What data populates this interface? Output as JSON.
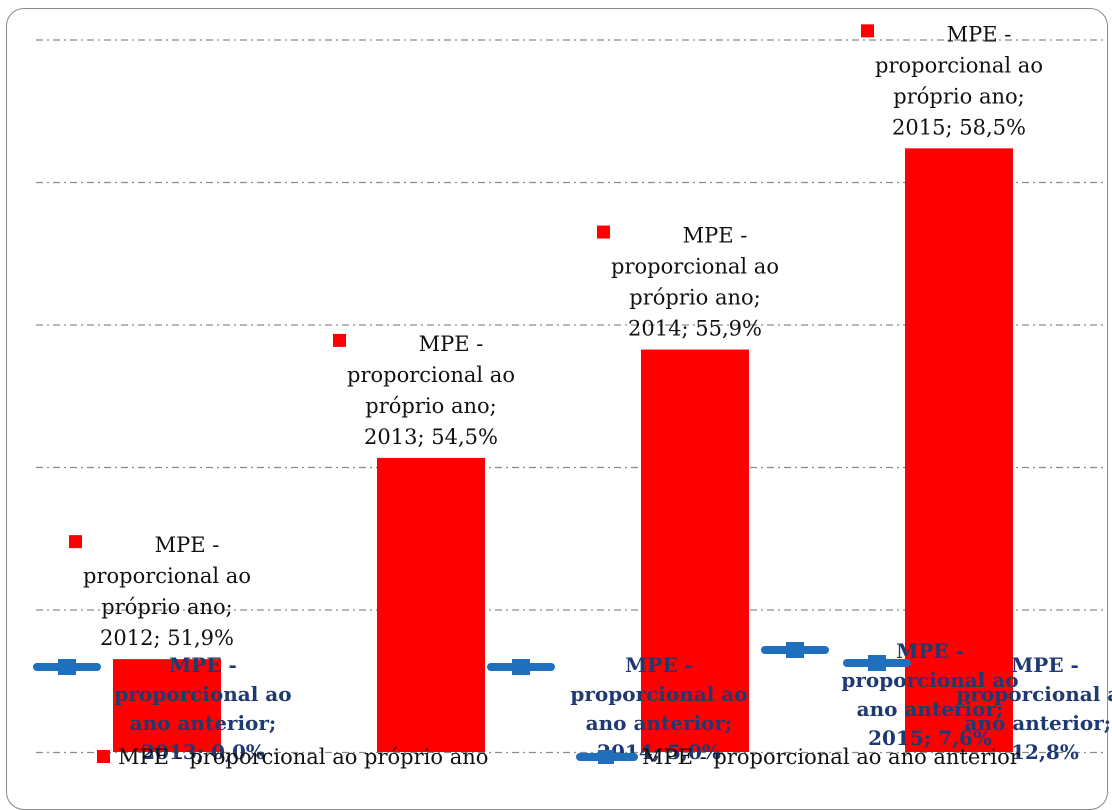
{
  "chart_data": {
    "type": "bar",
    "categories": [
      "2012",
      "2013",
      "2014",
      "2015"
    ],
    "ylim": [
      50.7,
      59.9
    ],
    "series": [
      {
        "name": "MPE - proporcional ao próprio ano",
        "kind": "bar",
        "color": "#FF0000",
        "values": [
          51.9,
          54.5,
          55.9,
          58.5
        ],
        "labels": [
          [
            "MPE -",
            "proporcional ao",
            "próprio ano;",
            "2012; 51,9%"
          ],
          [
            "MPE -",
            "proporcional ao",
            "próprio ano;",
            "2013; 54,5%"
          ],
          [
            "MPE -",
            "proporcional ao",
            "próprio ano;",
            "2014; 55,9%"
          ],
          [
            "MPE -",
            "proporcional ao",
            "próprio ano;",
            "2015; 58,5%"
          ]
        ]
      },
      {
        "name": "MPE - proporcional ao ano anterior",
        "kind": "line",
        "color": "#1F6FBF",
        "values": [
          0.0,
          5.0,
          7.6,
          null
        ],
        "extra_value": 12.8,
        "labels": [
          [
            "MPE -",
            "proporcional ao",
            "ano anterior;",
            "2013; 0,0%"
          ],
          [
            "MPE -",
            "proporcional ao",
            "ano anterior;",
            "2014; 5,0%"
          ],
          [
            "MPE -",
            "proporcional ao",
            "ano anterior;",
            "2015; 7,6%"
          ],
          [
            "MPE -",
            "proporcional ao",
            "ano anterior; ;",
            "12,8%"
          ]
        ]
      }
    ],
    "grid": true,
    "legend": "bottom"
  }
}
